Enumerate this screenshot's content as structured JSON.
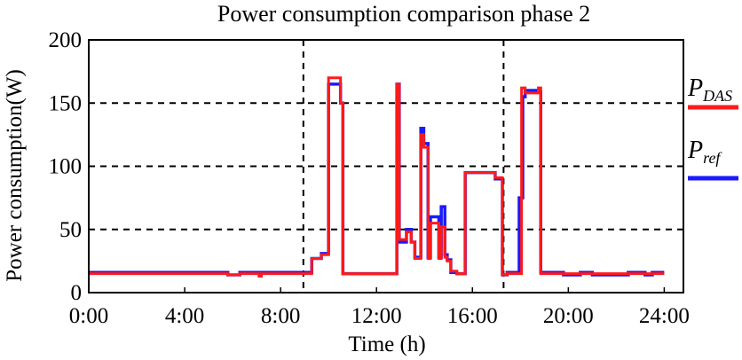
{
  "chart_data": {
    "type": "line",
    "title": "Power consumption comparison phase 2",
    "xlabel": "Time (h)",
    "ylabel": "Power consumption(W)",
    "xlim": [
      0,
      24.2
    ],
    "ylim": [
      0,
      200
    ],
    "xticks": [
      0,
      4,
      8,
      12,
      16,
      20,
      24
    ],
    "xtick_labels": [
      "0:00",
      "4:00",
      "8:00",
      "12:00",
      "16:00",
      "20:00",
      "24:00"
    ],
    "yticks": [
      0,
      50,
      100,
      150,
      200
    ],
    "ytick_labels": [
      "0",
      "50",
      "100",
      "150",
      "200"
    ],
    "hgrid": [
      50,
      100,
      150
    ],
    "vlines": [
      8.95,
      17.3
    ],
    "colors": {
      "P_DAS": "#ff1a1a",
      "P_ref": "#1a1aff"
    },
    "legend": [
      {
        "key": "P_DAS",
        "main": "P",
        "sub": "DAS"
      },
      {
        "key": "P_ref",
        "main": "P",
        "sub": "ref"
      }
    ],
    "series": [
      {
        "name": "P_ref",
        "x": [
          0,
          5.8,
          5.8,
          6.3,
          6.3,
          9.3,
          9.3,
          9.7,
          9.7,
          10.0,
          10.0,
          10.5,
          10.5,
          10.6,
          10.6,
          12.85,
          12.85,
          12.95,
          12.95,
          13.25,
          13.25,
          13.45,
          13.45,
          13.6,
          13.6,
          13.85,
          13.85,
          13.97,
          13.97,
          14.15,
          14.15,
          14.25,
          14.25,
          14.6,
          14.6,
          14.7,
          14.7,
          14.85,
          14.85,
          14.95,
          14.95,
          15.1,
          15.1,
          15.35,
          15.35,
          15.7,
          15.7,
          16.95,
          16.95,
          17.25,
          17.25,
          17.45,
          17.45,
          17.95,
          17.95,
          18.1,
          18.1,
          18.2,
          18.2,
          18.75,
          18.75,
          18.85,
          18.85,
          19.8,
          19.8,
          20.5,
          20.5,
          21.0,
          21.0,
          22.5,
          22.5,
          23.2,
          23.2,
          23.5,
          23.5,
          24.0
        ],
        "y": [
          16,
          16,
          14,
          14,
          16,
          16,
          27,
          27,
          31,
          31,
          165,
          165,
          150,
          150,
          15,
          15,
          165,
          165,
          40,
          40,
          50,
          50,
          40,
          40,
          28,
          28,
          130,
          130,
          118,
          118,
          28,
          28,
          60,
          60,
          28,
          28,
          68,
          68,
          30,
          30,
          26,
          26,
          16,
          16,
          15,
          15,
          95,
          95,
          90,
          90,
          14,
          14,
          16,
          16,
          75,
          75,
          155,
          155,
          160,
          160,
          159,
          159,
          16,
          16,
          14,
          14,
          16,
          16,
          14,
          14,
          16,
          16,
          14,
          14,
          16,
          16
        ]
      },
      {
        "name": "P_DAS",
        "x": [
          0,
          5.8,
          5.8,
          6.3,
          6.3,
          7.1,
          7.1,
          7.2,
          7.2,
          9.3,
          9.3,
          9.7,
          9.7,
          10.0,
          10.0,
          10.5,
          10.5,
          10.6,
          10.6,
          12.85,
          12.85,
          12.95,
          12.95,
          13.25,
          13.25,
          13.45,
          13.45,
          13.6,
          13.6,
          13.85,
          13.85,
          13.97,
          13.97,
          14.15,
          14.15,
          14.25,
          14.25,
          14.6,
          14.6,
          14.7,
          14.7,
          14.85,
          14.85,
          14.95,
          14.95,
          15.1,
          15.1,
          15.35,
          15.35,
          15.7,
          15.7,
          16.95,
          16.95,
          17.25,
          17.25,
          17.45,
          17.45,
          18.05,
          18.05,
          18.2,
          18.2,
          18.75,
          18.75,
          18.85,
          18.85,
          24.0
        ],
        "y": [
          15,
          15,
          14,
          14,
          15,
          15,
          13,
          13,
          15,
          15,
          27,
          27,
          30,
          30,
          170,
          170,
          150,
          150,
          15,
          15,
          165,
          165,
          42,
          42,
          48,
          48,
          40,
          40,
          27,
          27,
          125,
          125,
          115,
          115,
          27,
          27,
          55,
          55,
          27,
          27,
          52,
          52,
          28,
          28,
          25,
          25,
          17,
          17,
          15,
          15,
          95,
          95,
          91,
          91,
          14,
          14,
          15,
          15,
          162,
          162,
          158,
          158,
          162,
          162,
          15,
          15
        ]
      }
    ]
  }
}
